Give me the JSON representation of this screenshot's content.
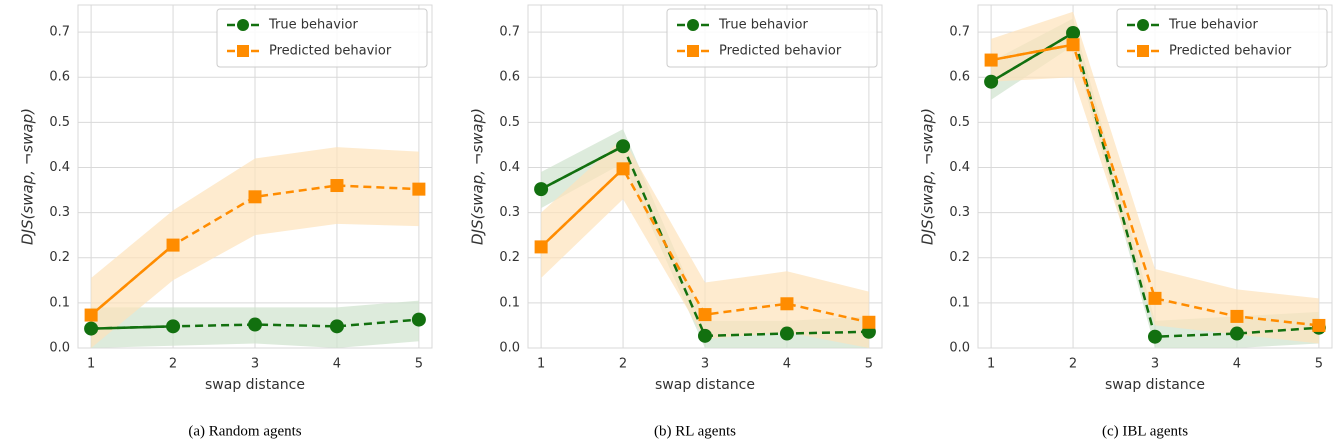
{
  "chart_data": [
    {
      "type": "line",
      "caption": "(a) Random agents",
      "xlabel": "swap distance",
      "ylabel": "DJS(swap, ¬swap)",
      "x": [
        1,
        2,
        3,
        4,
        5
      ],
      "xlim": [
        0.84,
        5.16
      ],
      "xticks": [
        1,
        2,
        3,
        4,
        5
      ],
      "ylim": [
        0,
        0.76
      ],
      "yticks": [
        {
          "value": 0,
          "label": "0.0"
        },
        0.1,
        0.2,
        0.3,
        0.4,
        0.5,
        0.6,
        0.7
      ],
      "grid": true,
      "legend": "upper right",
      "series": [
        {
          "name": "True behavior",
          "color": "#12700f",
          "band_color": "#cfe3cd",
          "values": [
            0.043,
            0.048,
            0.052,
            0.048,
            0.063
          ],
          "lower": [
            0.0,
            0.005,
            0.01,
            0.0,
            0.015
          ],
          "upper": [
            0.09,
            0.09,
            0.09,
            0.09,
            0.105
          ]
        },
        {
          "name": "Predicted behavior",
          "color": "#ff8c00",
          "band_color": "#fde3bb",
          "values": [
            0.073,
            0.228,
            0.335,
            0.36,
            0.352
          ],
          "lower": [
            0.0,
            0.15,
            0.25,
            0.275,
            0.27
          ],
          "upper": [
            0.155,
            0.305,
            0.42,
            0.445,
            0.435
          ]
        }
      ]
    },
    {
      "type": "line",
      "caption": "(b) RL agents",
      "xlabel": "swap distance",
      "ylabel": "DJS(swap, ¬swap)",
      "x": [
        1,
        2,
        3,
        4,
        5
      ],
      "xlim": [
        0.84,
        5.16
      ],
      "xticks": [
        1,
        2,
        3,
        4,
        5
      ],
      "ylim": [
        0,
        0.76
      ],
      "yticks": [
        {
          "value": 0,
          "label": "0.0"
        },
        0.1,
        0.2,
        0.3,
        0.4,
        0.5,
        0.6,
        0.7
      ],
      "grid": true,
      "legend": "upper right",
      "series": [
        {
          "name": "True behavior",
          "color": "#12700f",
          "band_color": "#cfe3cd",
          "values": [
            0.352,
            0.447,
            0.027,
            0.032,
            0.036
          ],
          "lower": [
            0.31,
            0.41,
            0.0,
            0.0,
            0.0
          ],
          "upper": [
            0.39,
            0.485,
            0.06,
            0.06,
            0.07
          ]
        },
        {
          "name": "Predicted behavior",
          "color": "#ff8c00",
          "band_color": "#fde3bb",
          "values": [
            0.224,
            0.397,
            0.074,
            0.098,
            0.057
          ],
          "lower": [
            0.155,
            0.33,
            0.02,
            0.035,
            0.0
          ],
          "upper": [
            0.3,
            0.465,
            0.145,
            0.17,
            0.125
          ]
        }
      ]
    },
    {
      "type": "line",
      "caption": "(c) IBL agents",
      "xlabel": "swap distance",
      "ylabel": "DJS(swap, ¬swap)",
      "x": [
        1,
        2,
        3,
        4,
        5
      ],
      "xlim": [
        0.84,
        5.16
      ],
      "xticks": [
        1,
        2,
        3,
        4,
        5
      ],
      "ylim": [
        0,
        0.76
      ],
      "yticks": [
        {
          "value": 0,
          "label": "0.0"
        },
        0.1,
        0.2,
        0.3,
        0.4,
        0.5,
        0.6,
        0.7
      ],
      "grid": true,
      "legend": "upper right",
      "series": [
        {
          "name": "True behavior",
          "color": "#12700f",
          "band_color": "#cfe3cd",
          "values": [
            0.59,
            0.698,
            0.025,
            0.032,
            0.045
          ],
          "lower": [
            0.55,
            0.67,
            0.0,
            0.0,
            0.01
          ],
          "upper": [
            0.635,
            0.73,
            0.06,
            0.07,
            0.08
          ]
        },
        {
          "name": "Predicted behavior",
          "color": "#ff8c00",
          "band_color": "#fde3bb",
          "values": [
            0.638,
            0.672,
            0.11,
            0.07,
            0.05
          ],
          "lower": [
            0.59,
            0.6,
            0.05,
            0.03,
            0.01
          ],
          "upper": [
            0.685,
            0.745,
            0.175,
            0.13,
            0.11
          ]
        }
      ]
    }
  ]
}
